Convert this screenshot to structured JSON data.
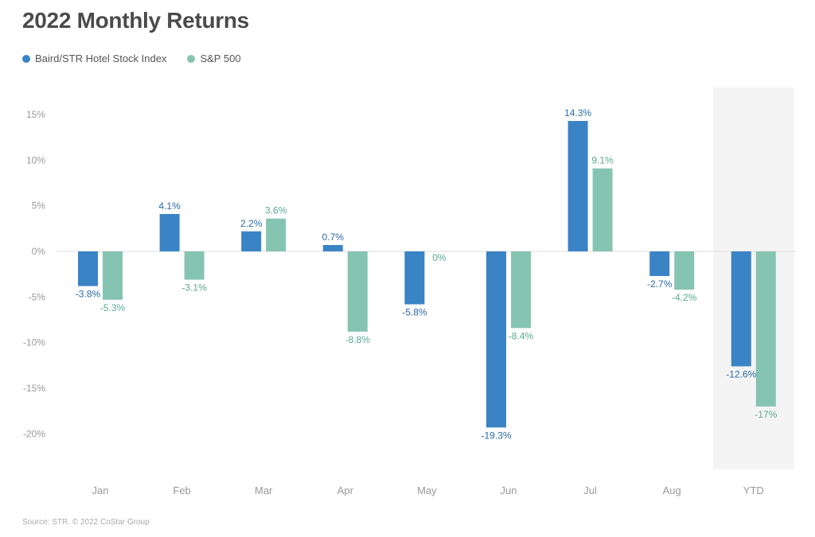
{
  "title": "2022 Monthly Returns",
  "source": "Source: STR. © 2022 CoStar Group",
  "colors": {
    "series1": "#3a83c5",
    "series2": "#86c4b2",
    "highlight": "#f4f4f4",
    "zero": "#dddddd"
  },
  "chart_data": {
    "type": "bar",
    "title": "2022 Monthly Returns",
    "xlabel": "",
    "ylabel": "",
    "ylim": [
      -20,
      15
    ],
    "yticks": [
      15,
      10,
      5,
      0,
      -5,
      -10,
      -15,
      -20
    ],
    "ytick_labels": [
      "15%",
      "10%",
      "5%",
      "0%",
      "-5%",
      "-10%",
      "-15%",
      "-20%"
    ],
    "categories": [
      "Jan",
      "Feb",
      "Mar",
      "Apr",
      "May",
      "Jun",
      "Jul",
      "Aug",
      "YTD"
    ],
    "highlight_category": "YTD",
    "legend_position": "top-left",
    "grid": false,
    "series": [
      {
        "name": "Baird/STR Hotel Stock Index",
        "values": [
          -3.8,
          4.1,
          2.2,
          0.7,
          -5.8,
          -19.3,
          14.3,
          -2.7,
          -12.6
        ],
        "labels": [
          "-3.8%",
          "4.1%",
          "2.2%",
          "0.7%",
          "-5.8%",
          "-19.3%",
          "14.3%",
          "-2.7%",
          "-12.6%"
        ]
      },
      {
        "name": "S&P 500",
        "values": [
          -5.3,
          -3.1,
          3.6,
          -8.8,
          0,
          -8.4,
          9.1,
          -4.2,
          -17
        ],
        "labels": [
          "-5.3%",
          "-3.1%",
          "3.6%",
          "-8.8%",
          "0%",
          "-8.4%",
          "9.1%",
          "-4.2%",
          "-17%"
        ]
      }
    ]
  }
}
